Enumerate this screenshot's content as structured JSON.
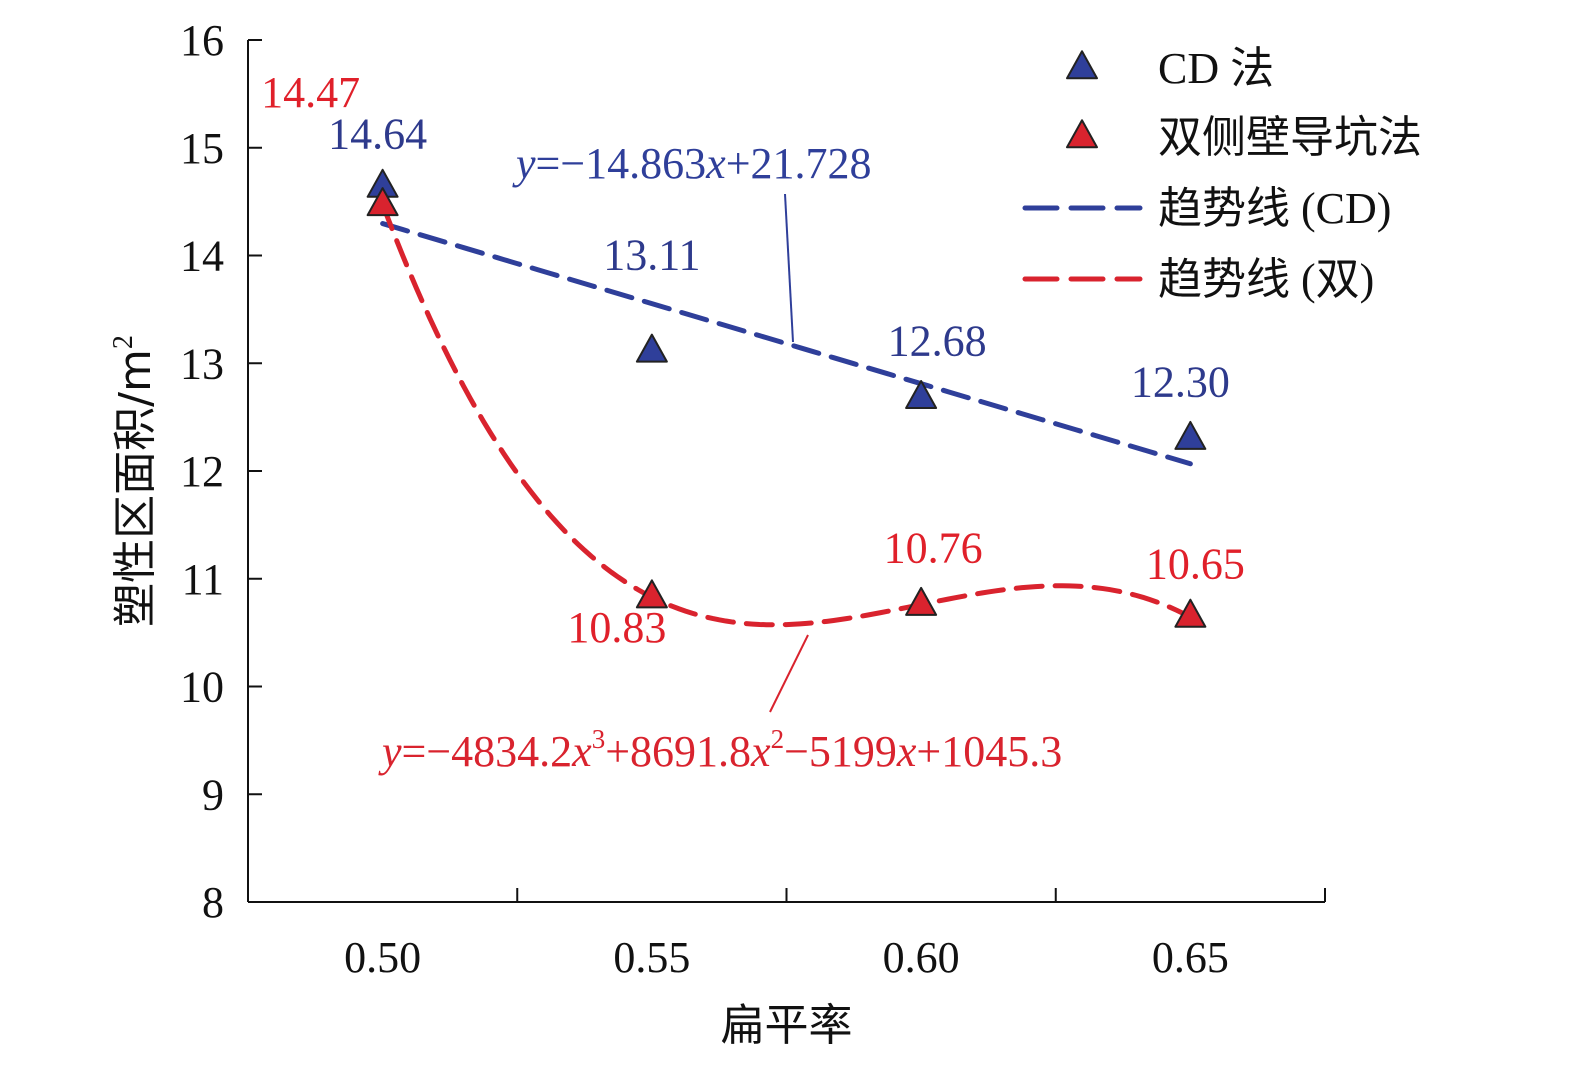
{
  "chart_data": {
    "type": "scatter",
    "xlabel": "扁平率",
    "ylabel": "塑性区面积/m",
    "ylabel_sup": "2",
    "xlim": [
      0.475,
      0.675
    ],
    "ylim": [
      8,
      16
    ],
    "x_ticks": [
      0.5,
      0.55,
      0.6,
      0.65
    ],
    "x_tick_labels": [
      "0.50",
      "0.55",
      "0.60",
      "0.65"
    ],
    "y_ticks": [
      8,
      9,
      10,
      11,
      12,
      13,
      14,
      15,
      16
    ],
    "y_tick_labels": [
      "8",
      "9",
      "10",
      "11",
      "12",
      "13",
      "14",
      "15",
      "16"
    ],
    "grid": false,
    "legend_position": "top-right",
    "series": [
      {
        "name": "CD 法",
        "marker": "triangle",
        "color": "#2f3f9a",
        "label_color": "#2e3a8c",
        "x": [
          0.5,
          0.55,
          0.6,
          0.65
        ],
        "y": [
          14.64,
          13.11,
          12.68,
          12.3
        ],
        "labels": [
          "14.64",
          "13.11",
          "12.68",
          "12.30"
        ]
      },
      {
        "name": "双侧壁导坑法",
        "marker": "triangle",
        "color": "#d9232e",
        "label_color": "#e0202a",
        "x": [
          0.5,
          0.55,
          0.6,
          0.65
        ],
        "y": [
          14.47,
          10.83,
          10.76,
          10.65
        ],
        "labels": [
          "14.47",
          "10.83",
          "10.76",
          "10.65"
        ]
      }
    ],
    "trendlines": [
      {
        "name": "趋势线 (CD)",
        "type": "linear",
        "color": "#2f3f9a",
        "coefficients": [
          -14.863,
          21.728
        ],
        "equation_parts": [
          {
            "t": "y",
            "i": true
          },
          {
            "t": "=−14.863"
          },
          {
            "t": "x",
            "i": true
          },
          {
            "t": "+21.728"
          }
        ]
      },
      {
        "name": "趋势线 (双)",
        "type": "cubic",
        "color": "#d9232e",
        "coefficients": [
          -4834.2,
          8691.8,
          -5199,
          1045.3
        ],
        "equation_parts": [
          {
            "t": "y",
            "i": true
          },
          {
            "t": "=−4834.2"
          },
          {
            "t": "x",
            "i": true
          },
          {
            "t": "3",
            "sup": true
          },
          {
            "t": "+8691.8"
          },
          {
            "t": "x",
            "i": true
          },
          {
            "t": "2",
            "sup": true
          },
          {
            "t": "−5199"
          },
          {
            "t": "x",
            "i": true
          },
          {
            "t": "+1045.3"
          }
        ]
      }
    ]
  }
}
